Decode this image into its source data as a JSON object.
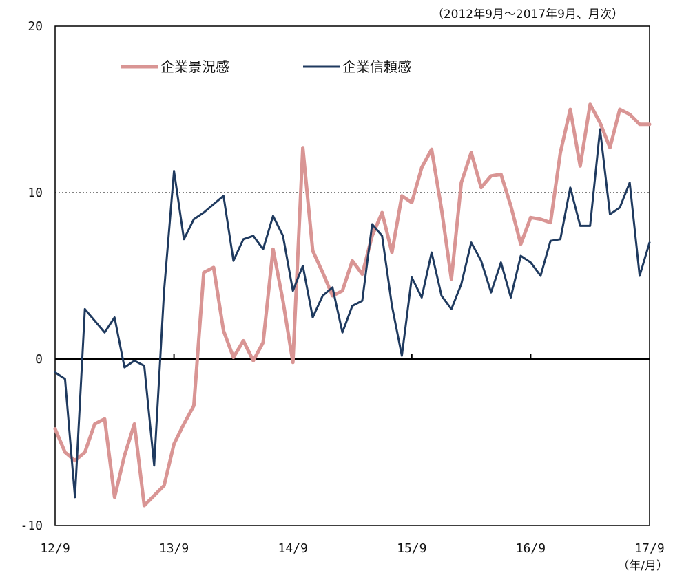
{
  "chart_data": {
    "type": "line",
    "subtitle": "（2012年9月～2017年9月、月次）",
    "unit_label": "（年/月）",
    "ylim": [
      -10,
      20
    ],
    "yticks": [
      -10,
      0,
      10,
      20
    ],
    "ytick_labels": [
      "-10",
      "0",
      "10",
      "20"
    ],
    "xlim": [
      0,
      60
    ],
    "xticks": [
      0,
      12,
      24,
      36,
      48,
      60
    ],
    "xtick_labels": [
      "12/9",
      "13/9",
      "14/9",
      "15/9",
      "16/9",
      "17/9"
    ],
    "reference_line": 10,
    "legend_position": "top-left",
    "series": [
      {
        "name": "企業景況感",
        "color": "#d99594",
        "values": [
          -4.2,
          -5.6,
          -6.1,
          -5.6,
          -3.9,
          -3.6,
          -8.3,
          -5.8,
          -3.9,
          -8.8,
          -8.2,
          -7.6,
          -5.1,
          -3.9,
          -2.8,
          5.2,
          5.5,
          1.7,
          0.1,
          1.1,
          -0.1,
          1.0,
          6.6,
          3.5,
          -0.2,
          12.7,
          6.5,
          5.2,
          3.8,
          4.1,
          5.9,
          5.1,
          7.4,
          8.8,
          6.4,
          9.8,
          9.4,
          11.5,
          12.6,
          9.0,
          4.8,
          10.6,
          12.4,
          10.3,
          11.0,
          11.1,
          9.2,
          6.9,
          8.5,
          8.4,
          8.2,
          12.4,
          15.0,
          11.6,
          15.3,
          14.2,
          12.7,
          15.0,
          14.7,
          14.1,
          14.1
        ]
      },
      {
        "name": "企業信頼感",
        "color": "#1f3a5f",
        "values": [
          -0.8,
          -1.2,
          -8.3,
          3.0,
          2.3,
          1.6,
          2.5,
          -0.5,
          -0.1,
          -0.4,
          -6.4,
          4.1,
          11.3,
          7.2,
          8.4,
          8.8,
          9.3,
          9.8,
          5.9,
          7.2,
          7.4,
          6.6,
          8.6,
          7.4,
          4.1,
          5.6,
          2.5,
          3.8,
          4.3,
          1.6,
          3.2,
          3.5,
          8.1,
          7.4,
          3.2,
          0.2,
          4.9,
          3.7,
          6.4,
          3.8,
          3.0,
          4.5,
          7.0,
          5.9,
          4.0,
          5.8,
          3.7,
          6.2,
          5.8,
          5.0,
          7.1,
          7.2,
          10.3,
          8.0,
          8.0,
          13.8,
          8.7,
          9.1,
          10.6,
          5.0,
          7.0
        ]
      }
    ]
  }
}
